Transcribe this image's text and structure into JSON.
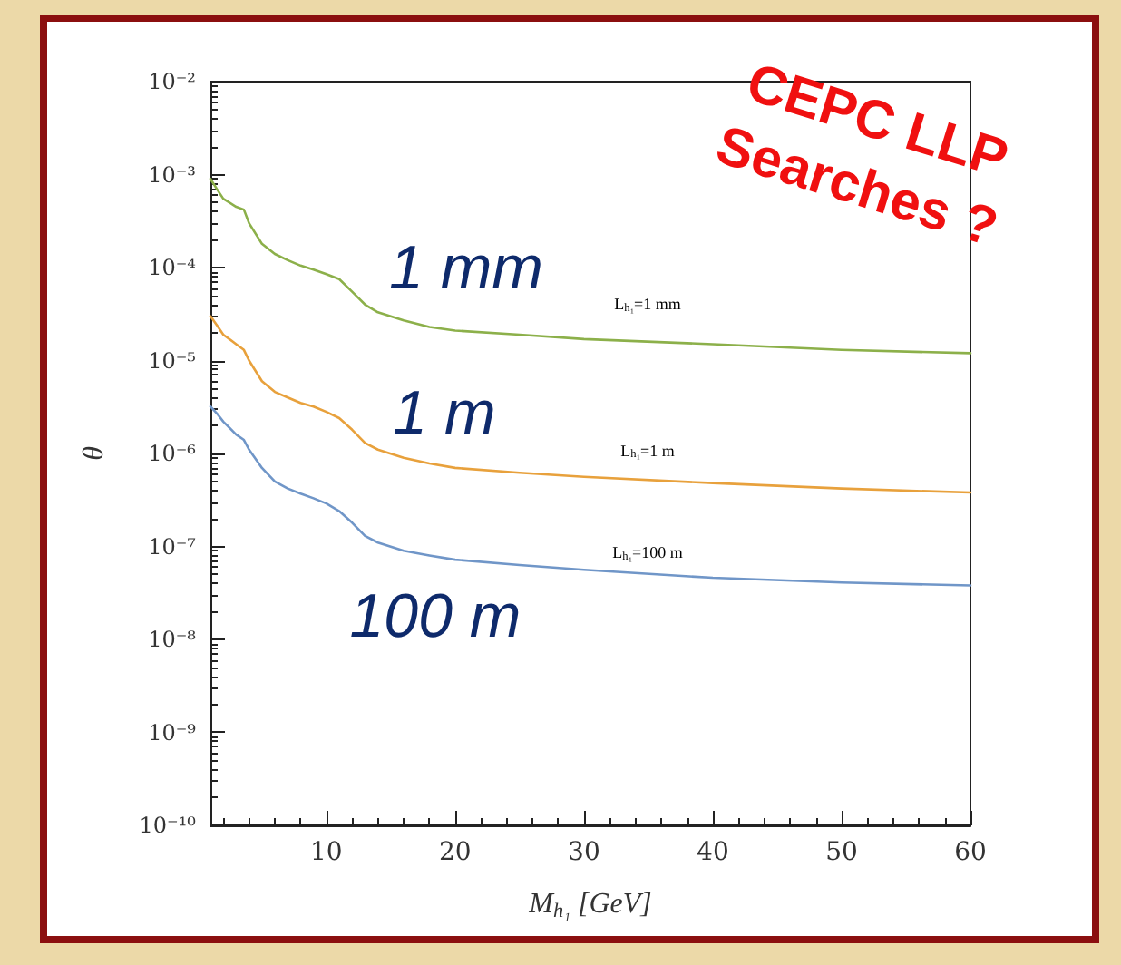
{
  "chart_data": {
    "type": "line",
    "x": [
      1,
      1.5,
      2,
      3,
      3.6,
      4,
      5,
      6,
      7,
      8,
      9,
      10,
      11,
      12,
      13,
      14,
      16,
      18,
      20,
      25,
      30,
      40,
      50,
      60
    ],
    "series": [
      {
        "color": "#8cb04a",
        "values": [
          0.0009,
          0.0007,
          0.00055,
          0.00045,
          0.00042,
          0.0003,
          0.00018,
          0.00014,
          0.00012,
          0.000105,
          9.5e-05,
          8.5e-05,
          7.5e-05,
          5.5e-05,
          4e-05,
          3.3e-05,
          2.7e-05,
          2.3e-05,
          2.1e-05,
          1.9e-05,
          1.7e-05,
          1.5e-05,
          1.3e-05,
          1.2e-05
        ]
      },
      {
        "color": "#e8a13c",
        "values": [
          3e-05,
          2.4e-05,
          1.9e-05,
          1.5e-05,
          1.3e-05,
          1e-05,
          6e-06,
          4.6e-06,
          4e-06,
          3.5e-06,
          3.2e-06,
          2.8e-06,
          2.4e-06,
          1.8e-06,
          1.3e-06,
          1.1e-06,
          9e-07,
          7.8e-07,
          7e-07,
          6.2e-07,
          5.6e-07,
          4.8e-07,
          4.2e-07,
          3.8e-07
        ]
      },
      {
        "color": "#7096c8",
        "values": [
          3.2e-06,
          2.7e-06,
          2.2e-06,
          1.6e-06,
          1.4e-06,
          1.1e-06,
          7e-07,
          5e-07,
          4.2e-07,
          3.7e-07,
          3.3e-07,
          2.9e-07,
          2.4e-07,
          1.8e-07,
          1.3e-07,
          1.1e-07,
          9e-08,
          8e-08,
          7.2e-08,
          6.3e-08,
          5.6e-08,
          4.6e-08,
          4.1e-08,
          3.8e-08
        ]
      }
    ],
    "xlabel": "M$_{h₁}$ [GeV]",
    "ylabel": "θ",
    "xlim": [
      1,
      60
    ],
    "xticks": [
      10,
      20,
      30,
      40,
      50,
      60
    ],
    "ylim": [
      1e-10,
      0.01
    ],
    "yticks": [
      {
        "value": 1e-10,
        "label": "10⁻¹⁰"
      },
      {
        "value": 1e-09,
        "label": "10⁻⁹"
      },
      {
        "value": 1e-08,
        "label": "10⁻⁸"
      },
      {
        "value": 1e-07,
        "label": "10⁻⁷"
      },
      {
        "value": 1e-06,
        "label": "10⁻⁶"
      },
      {
        "value": 1e-05,
        "label": "10⁻⁵"
      },
      {
        "value": 0.0001,
        "label": "10⁻⁴"
      },
      {
        "value": 0.001,
        "label": "10⁻³"
      },
      {
        "value": 0.01,
        "label": "10⁻²"
      }
    ],
    "log": "y",
    "grid": false,
    "marker": "none",
    "line_style": "solid",
    "annotations": [
      "L$_{h₁}$=1 mm",
      "L$_{h₁}$=1 m",
      "L$_{h₁}$=100 m",
      "1 mm",
      "1 m",
      "100 m",
      "CEPC LLP Searches ?"
    ]
  }
}
